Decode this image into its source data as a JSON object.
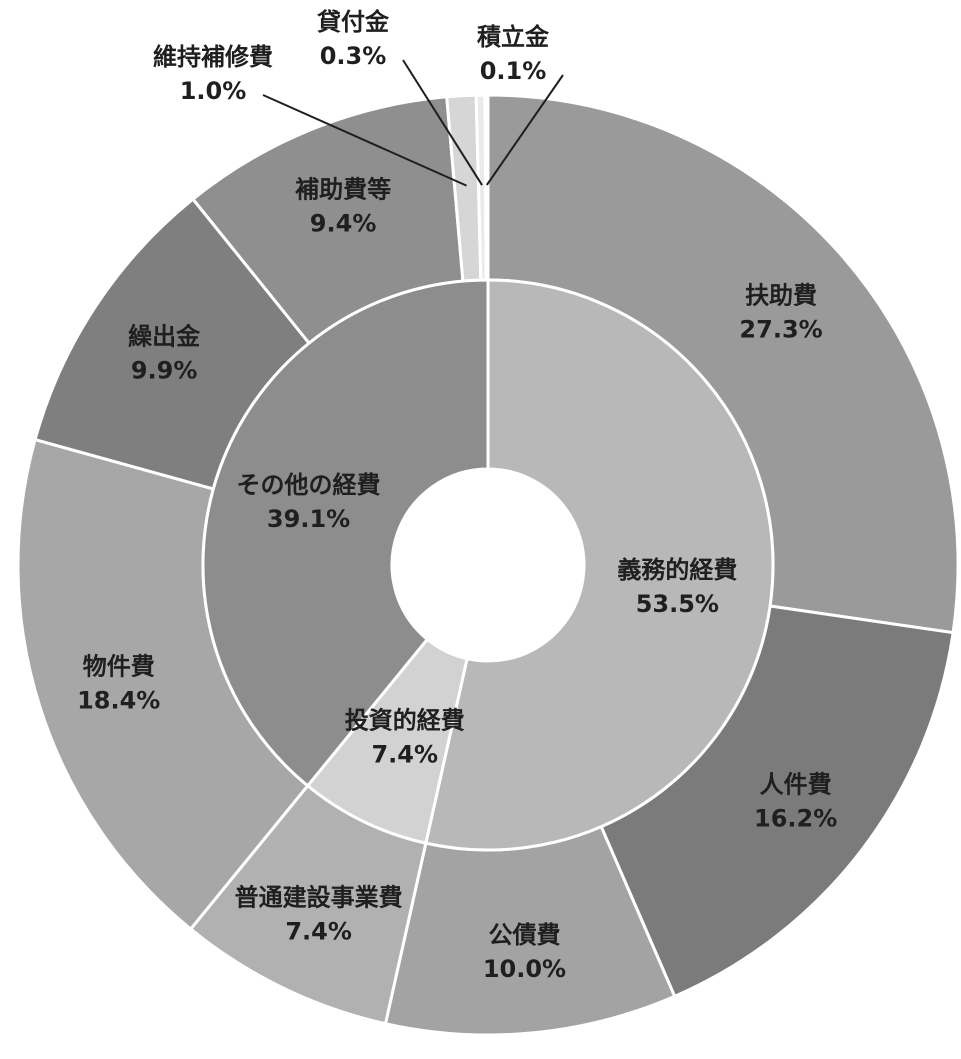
{
  "chart_data": {
    "type": "pie",
    "subtype": "nested-donut",
    "inner_ring": {
      "categories": [
        "義務的経費",
        "投資的経費",
        "その他の経費"
      ],
      "values": [
        53.5,
        7.4,
        39.1
      ],
      "labels": [
        "53.5%",
        "7.4%",
        "39.1%"
      ],
      "colors": [
        "#b8b8b8",
        "#d2d2d2",
        "#8d8d8d"
      ]
    },
    "outer_ring": {
      "categories": [
        "扶助費",
        "人件費",
        "公債費",
        "普通建設事業費",
        "物件費",
        "繰出金",
        "補助費等",
        "維持補修費",
        "貸付金",
        "積立金"
      ],
      "values": [
        27.3,
        16.2,
        10.0,
        7.4,
        18.4,
        9.9,
        9.4,
        1.0,
        0.3,
        0.1
      ],
      "labels": [
        "27.3%",
        "16.2%",
        "10.0%",
        "7.4%",
        "18.4%",
        "9.9%",
        "9.4%",
        "1.0%",
        "0.3%",
        "0.1%"
      ],
      "colors": [
        "#9a9a9a",
        "#7b7b7b",
        "#a3a3a3",
        "#b1b1b1",
        "#a7a7a7",
        "#7f7f7f",
        "#8f8f8f",
        "#d6d6d6",
        "#eaeaea",
        "#f4f4f4"
      ]
    }
  }
}
